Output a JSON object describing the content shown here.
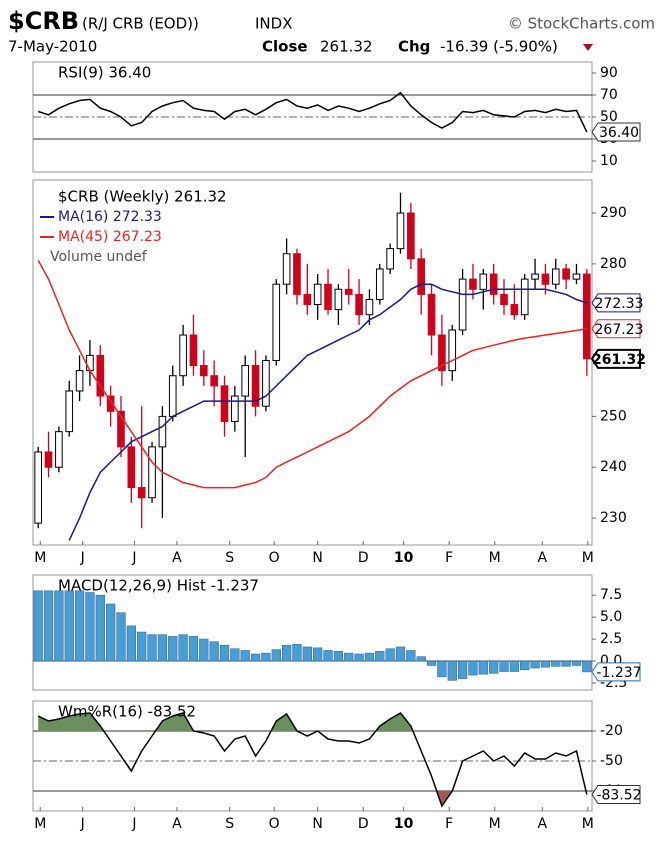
{
  "header": {
    "title": "$CRB",
    "subtitle": "(R/J CRB (EOD))",
    "exchange": "INDX",
    "source": "© StockCharts.com",
    "date": "7-May-2010",
    "close_label": "Close",
    "close": "261.32",
    "chg_label": "Chg",
    "chg": "-16.39 (-5.90%)"
  },
  "chart_data": [
    {
      "type": "line",
      "legend": "RSI(9) 36.40",
      "ylim": [
        0,
        100
      ],
      "yticks": [
        90,
        70,
        50,
        30,
        10
      ],
      "levels": [
        70,
        50,
        30
      ],
      "series": [
        {
          "name": "RSI(9)",
          "color": "#000000",
          "value_label": "36.40",
          "values": [
            55,
            52,
            58,
            62,
            65,
            66,
            58,
            55,
            50,
            42,
            45,
            55,
            60,
            63,
            65,
            58,
            56,
            55,
            48,
            55,
            57,
            52,
            57,
            63,
            66,
            60,
            58,
            61,
            56,
            60,
            58,
            55,
            58,
            62,
            65,
            72,
            60,
            52,
            45,
            40,
            45,
            55,
            54,
            56,
            52,
            51,
            50,
            55,
            56,
            54,
            57,
            55,
            56,
            36.4
          ]
        }
      ]
    },
    {
      "type": "candlestick",
      "legend": "$CRB (Weekly) 261.32",
      "volume_legend": "Volume undef",
      "ylim": [
        224.7,
        296.5
      ],
      "yticks": [
        290,
        280,
        250,
        240,
        230
      ],
      "up_color": "#ffffff",
      "down_color": "#d0021b",
      "value_label": "261.32",
      "xticks": [
        {
          "value": 0.2,
          "label": "M"
        },
        {
          "value": 4.3,
          "label": "J"
        },
        {
          "value": 9.3,
          "label": "J"
        },
        {
          "value": 13.4,
          "label": "A"
        },
        {
          "value": 18.5,
          "label": "S"
        },
        {
          "value": 22.8,
          "label": "O"
        },
        {
          "value": 27,
          "label": "N"
        },
        {
          "value": 31.4,
          "label": "D"
        },
        {
          "value": 35.3,
          "label": "10"
        },
        {
          "value": 39.7,
          "label": "F"
        },
        {
          "value": 44.1,
          "label": "M"
        },
        {
          "value": 48.7,
          "label": "A"
        },
        {
          "value": 53.1,
          "label": "M"
        }
      ],
      "open": [
        229,
        243,
        240,
        247,
        255,
        259,
        262,
        254,
        251,
        244,
        236,
        234,
        244,
        250,
        258,
        266,
        260,
        258,
        256,
        249,
        254,
        260,
        252,
        261,
        276,
        282,
        274,
        272,
        276,
        271,
        275,
        274,
        270,
        273,
        279,
        283,
        290,
        281,
        274,
        266,
        259,
        267,
        277,
        275,
        278,
        274,
        272,
        270,
        277,
        278,
        276,
        279,
        277,
        278
      ],
      "high": [
        244,
        247,
        248,
        257,
        262,
        265,
        264,
        256,
        254,
        246,
        252,
        245,
        252,
        260,
        268,
        270,
        263,
        261,
        258,
        256,
        262,
        263,
        262,
        277,
        285,
        283,
        280,
        278,
        279,
        276,
        279,
        277,
        275,
        280,
        284,
        294,
        292,
        283,
        276,
        270,
        268,
        279,
        280,
        279,
        280,
        277,
        276,
        278,
        281,
        280,
        281,
        280,
        280,
        279
      ],
      "low": [
        228,
        238,
        239,
        246,
        253,
        256,
        252,
        248,
        242,
        233,
        228,
        233,
        230,
        249,
        256,
        258,
        256,
        252,
        246,
        247,
        242,
        250,
        251,
        260,
        274,
        272,
        270,
        269,
        270,
        268,
        272,
        268,
        268,
        272,
        278,
        282,
        279,
        270,
        262,
        256,
        257,
        266,
        273,
        271,
        272,
        270,
        269,
        269,
        275,
        274,
        275,
        275,
        276,
        258
      ],
      "close": [
        243,
        240,
        247,
        255,
        259,
        262,
        254,
        251,
        244,
        236,
        234,
        244,
        250,
        258,
        266,
        260,
        258,
        256,
        249,
        254,
        260,
        252,
        261,
        276,
        282,
        274,
        272,
        276,
        271,
        275,
        274,
        270,
        273,
        279,
        283,
        290,
        281,
        274,
        266,
        259,
        267,
        277,
        275,
        278,
        274,
        272,
        270,
        277,
        278,
        276,
        279,
        277,
        278,
        261.32
      ],
      "series": [
        {
          "name": "MA(16) 272.33",
          "color": "#1a1a8c",
          "value_label": "272.33",
          "values": [
            null,
            null,
            null,
            225.6,
            230,
            235,
            239,
            241,
            243,
            245,
            246,
            247,
            248,
            250,
            251,
            252,
            253,
            253,
            253,
            253,
            253,
            253,
            254,
            256,
            258,
            260,
            262,
            263,
            264,
            265,
            266,
            267,
            269,
            270,
            271.5,
            273,
            275,
            276,
            276,
            275,
            274.5,
            274,
            274,
            274.5,
            275,
            275,
            275,
            275,
            275,
            275,
            274.5,
            274,
            273,
            272.33
          ]
        },
        {
          "name": "MA(45) 267.23",
          "color": "#ee2222",
          "value_label": "267.23",
          "values": [
            280.7,
            277,
            272,
            267,
            263,
            259,
            256,
            253,
            250,
            247,
            244,
            241,
            239,
            238,
            237,
            236.5,
            236,
            236,
            236,
            236,
            236.5,
            237,
            238,
            240,
            241,
            242,
            243,
            244,
            245,
            246,
            247,
            248.5,
            250,
            252,
            254,
            255.5,
            257,
            258,
            259,
            260,
            261,
            262,
            263,
            263.5,
            264,
            264.5,
            265,
            265.4,
            265.7,
            266,
            266.3,
            266.6,
            266.9,
            267.23
          ]
        }
      ]
    },
    {
      "type": "bar",
      "legend": "MACD(12,26,9) Hist -1.237",
      "ylim": [
        -3.3,
        9.8
      ],
      "yticks": [
        7.5,
        {
          "value": 5,
          "label": "5.0"
        },
        2.5,
        {
          "value": 0,
          "label": "0.0"
        },
        -2.5
      ],
      "levels": [
        0
      ],
      "color": "#4b9cd3",
      "value_label": "-1.237",
      "values": [
        8,
        8,
        8,
        8,
        8,
        7.8,
        7.5,
        6.5,
        5.5,
        4,
        3.3,
        3,
        3,
        2.8,
        3,
        2.8,
        2.5,
        2.2,
        1.8,
        1.4,
        1.2,
        0.8,
        0.9,
        1.3,
        1.8,
        1.9,
        1.6,
        1.5,
        1.2,
        1.1,
        0.9,
        0.8,
        0.9,
        1.1,
        1.4,
        1.6,
        1.2,
        0.5,
        -0.5,
        -1.8,
        -2.2,
        -2,
        -1.6,
        -1.5,
        -1.4,
        -1.2,
        -1.2,
        -1,
        -0.8,
        -0.7,
        -0.6,
        -0.6,
        -0.5,
        -1.237
      ]
    },
    {
      "type": "line",
      "legend": "Wm%R(16) -83.52",
      "ylim": [
        -100,
        10
      ],
      "yticks": [
        -20,
        -50,
        -80
      ],
      "levels": [
        -20,
        -50,
        -80
      ],
      "bands": [
        {
          "above": -20,
          "color": "#6b8f5e"
        },
        {
          "below": -80,
          "color": "#a35a55"
        }
      ],
      "xticks": [
        {
          "value": 0.2,
          "label": "M"
        },
        {
          "value": 4.3,
          "label": "J"
        },
        {
          "value": 9.3,
          "label": "J"
        },
        {
          "value": 13.4,
          "label": "A"
        },
        {
          "value": 18.5,
          "label": "S"
        },
        {
          "value": 22.8,
          "label": "O"
        },
        {
          "value": 27,
          "label": "N"
        },
        {
          "value": 31.4,
          "label": "D"
        },
        {
          "value": 35.3,
          "label": "10"
        },
        {
          "value": 39.7,
          "label": "F"
        },
        {
          "value": 44.1,
          "label": "M"
        },
        {
          "value": 48.7,
          "label": "A"
        },
        {
          "value": 53.1,
          "label": "M"
        }
      ],
      "series": [
        {
          "name": "Wm%R(16)",
          "color": "#000000",
          "value_label": "-83.52",
          "values": [
            -5,
            -10,
            -8,
            -5,
            -3,
            -2,
            -15,
            -30,
            -45,
            -60,
            -40,
            -25,
            -10,
            -5,
            -2,
            -20,
            -22,
            -25,
            -40,
            -28,
            -25,
            -45,
            -30,
            -10,
            -3,
            -20,
            -25,
            -20,
            -28,
            -30,
            -30,
            -32,
            -28,
            -15,
            -8,
            -2,
            -15,
            -40,
            -65,
            -95,
            -80,
            -50,
            -45,
            -40,
            -50,
            -45,
            -55,
            -42,
            -48,
            -48,
            -42,
            -45,
            -40,
            -83.52
          ]
        }
      ]
    }
  ]
}
